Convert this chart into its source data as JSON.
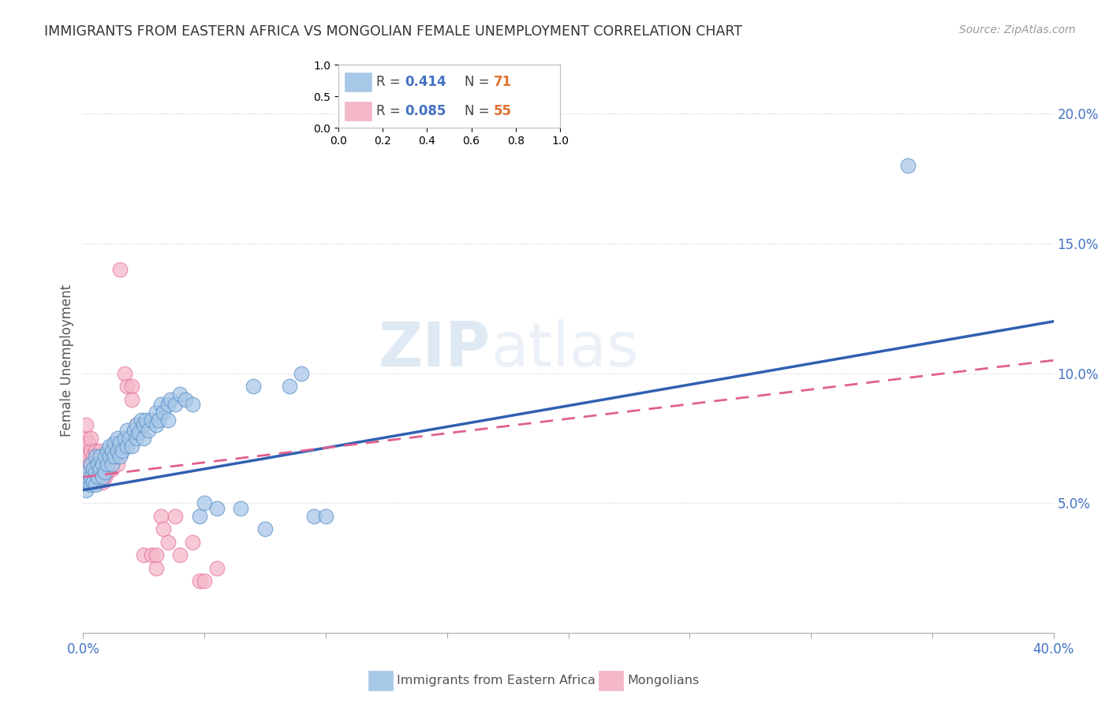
{
  "title": "IMMIGRANTS FROM EASTERN AFRICA VS MONGOLIAN FEMALE UNEMPLOYMENT CORRELATION CHART",
  "source": "Source: ZipAtlas.com",
  "ylabel": "Female Unemployment",
  "right_yticks": [
    "5.0%",
    "10.0%",
    "15.0%",
    "20.0%"
  ],
  "right_ytick_vals": [
    0.05,
    0.1,
    0.15,
    0.2
  ],
  "legend_blue_r": "0.414",
  "legend_blue_n": "71",
  "legend_pink_r": "0.085",
  "legend_pink_n": "55",
  "blue_color": "#a8c8e8",
  "pink_color": "#f4b8c8",
  "blue_edge_color": "#5890c8",
  "pink_edge_color": "#e870a0",
  "blue_line_color": "#3060b0",
  "pink_line_color": "#e06090",
  "watermark_zip": "ZIP",
  "watermark_atlas": "atlas",
  "blue_scatter_x": [
    0.001,
    0.001,
    0.002,
    0.002,
    0.003,
    0.003,
    0.003,
    0.004,
    0.004,
    0.005,
    0.005,
    0.005,
    0.006,
    0.006,
    0.007,
    0.007,
    0.008,
    0.008,
    0.009,
    0.009,
    0.01,
    0.01,
    0.011,
    0.011,
    0.012,
    0.012,
    0.013,
    0.013,
    0.014,
    0.014,
    0.015,
    0.015,
    0.016,
    0.017,
    0.018,
    0.018,
    0.019,
    0.02,
    0.021,
    0.022,
    0.022,
    0.023,
    0.024,
    0.025,
    0.025,
    0.026,
    0.027,
    0.028,
    0.03,
    0.03,
    0.031,
    0.032,
    0.033,
    0.035,
    0.035,
    0.036,
    0.038,
    0.04,
    0.042,
    0.045,
    0.048,
    0.05,
    0.055,
    0.065,
    0.07,
    0.075,
    0.085,
    0.09,
    0.095,
    0.1,
    0.34
  ],
  "blue_scatter_y": [
    0.06,
    0.055,
    0.058,
    0.062,
    0.057,
    0.06,
    0.065,
    0.058,
    0.063,
    0.062,
    0.068,
    0.057,
    0.06,
    0.065,
    0.063,
    0.068,
    0.06,
    0.065,
    0.062,
    0.068,
    0.065,
    0.07,
    0.068,
    0.072,
    0.065,
    0.07,
    0.068,
    0.073,
    0.07,
    0.075,
    0.068,
    0.073,
    0.07,
    0.075,
    0.072,
    0.078,
    0.075,
    0.072,
    0.078,
    0.075,
    0.08,
    0.077,
    0.082,
    0.075,
    0.08,
    0.082,
    0.078,
    0.082,
    0.08,
    0.085,
    0.082,
    0.088,
    0.085,
    0.082,
    0.088,
    0.09,
    0.088,
    0.092,
    0.09,
    0.088,
    0.045,
    0.05,
    0.048,
    0.048,
    0.095,
    0.04,
    0.095,
    0.1,
    0.045,
    0.045,
    0.18
  ],
  "pink_scatter_x": [
    0.001,
    0.001,
    0.001,
    0.001,
    0.001,
    0.002,
    0.002,
    0.002,
    0.002,
    0.003,
    0.003,
    0.003,
    0.003,
    0.004,
    0.004,
    0.004,
    0.005,
    0.005,
    0.005,
    0.006,
    0.006,
    0.006,
    0.007,
    0.007,
    0.007,
    0.008,
    0.008,
    0.009,
    0.009,
    0.01,
    0.01,
    0.011,
    0.012,
    0.013,
    0.013,
    0.014,
    0.015,
    0.017,
    0.018,
    0.02,
    0.02,
    0.022,
    0.025,
    0.028,
    0.03,
    0.03,
    0.032,
    0.033,
    0.035,
    0.038,
    0.04,
    0.045,
    0.048,
    0.05,
    0.055
  ],
  "pink_scatter_y": [
    0.06,
    0.065,
    0.07,
    0.075,
    0.08,
    0.058,
    0.063,
    0.068,
    0.073,
    0.06,
    0.065,
    0.07,
    0.075,
    0.058,
    0.063,
    0.068,
    0.06,
    0.065,
    0.07,
    0.058,
    0.063,
    0.068,
    0.06,
    0.065,
    0.07,
    0.058,
    0.063,
    0.06,
    0.065,
    0.062,
    0.068,
    0.065,
    0.063,
    0.068,
    0.073,
    0.065,
    0.14,
    0.1,
    0.095,
    0.095,
    0.09,
    0.08,
    0.03,
    0.03,
    0.025,
    0.03,
    0.045,
    0.04,
    0.035,
    0.045,
    0.03,
    0.035,
    0.02,
    0.02,
    0.025
  ],
  "xmin": 0.0,
  "xmax": 0.4,
  "ymin": 0.0,
  "ymax": 0.21,
  "blue_trend_x0": 0.0,
  "blue_trend_y0": 0.055,
  "blue_trend_x1": 0.4,
  "blue_trend_y1": 0.12,
  "pink_trend_x0": 0.0,
  "pink_trend_y0": 0.06,
  "pink_trend_x1": 0.4,
  "pink_trend_y1": 0.105
}
